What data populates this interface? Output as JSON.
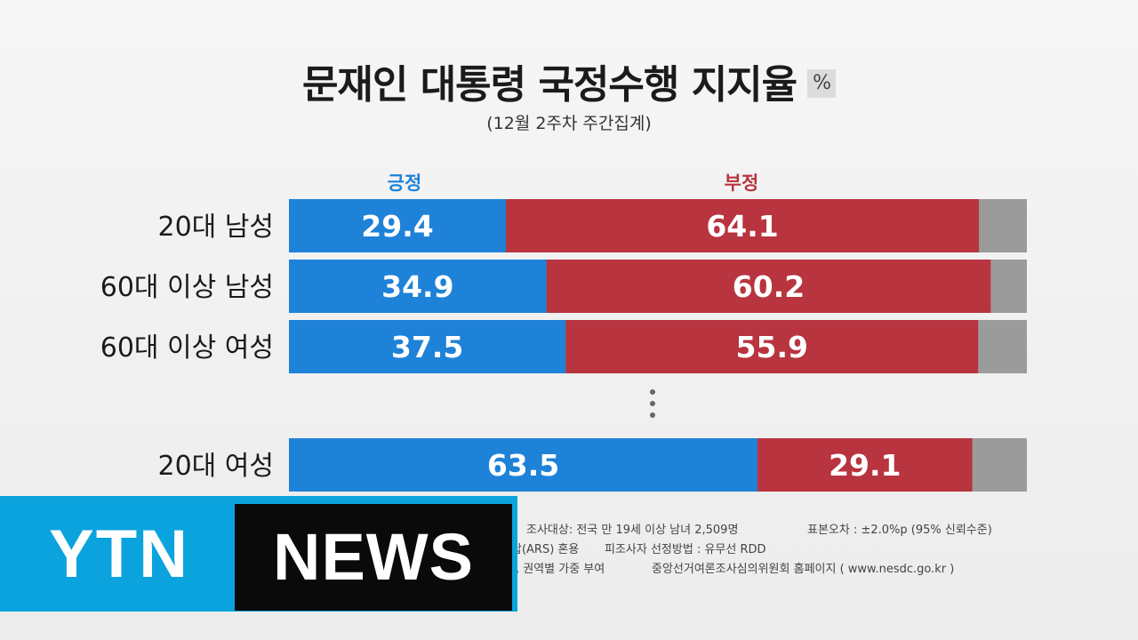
{
  "title": "문재인 대통령 국정수행 지지율",
  "unit": "%",
  "subtitle": "(12월 2주차 주간집계)",
  "colors": {
    "positive": "#1e82d8",
    "negative": "#b8343f",
    "other": "#9b9b9b"
  },
  "chart_data": {
    "type": "bar",
    "orientation": "horizontal-stacked",
    "categories": [
      "20대 남성",
      "60대 이상 남성",
      "60대 이상 여성",
      "20대 여성"
    ],
    "series": [
      {
        "name": "긍정",
        "values": [
          29.4,
          34.9,
          37.5,
          63.5
        ]
      },
      {
        "name": "부정",
        "values": [
          64.1,
          60.2,
          55.9,
          29.1
        ]
      }
    ],
    "xlim": [
      0,
      100
    ]
  },
  "footer": {
    "line1_left": "조사대상: 전국 만 19세 이상 남녀 2,509명",
    "line1_right": "표본오차 : ±2.0%p (95% 신뢰수준)",
    "line2_left": "답(ARS) 혼용",
    "line2_right": "피조사자 선정방법 : 유무선 RDD",
    "line3_left": "령, 권역별 가중 부여",
    "line3_right": "중앙선거여론조사심의위원회 홈페이지 ( www.nesdc.go.kr )"
  },
  "logo": {
    "ytn": "YTN",
    "news": "NEWS"
  }
}
